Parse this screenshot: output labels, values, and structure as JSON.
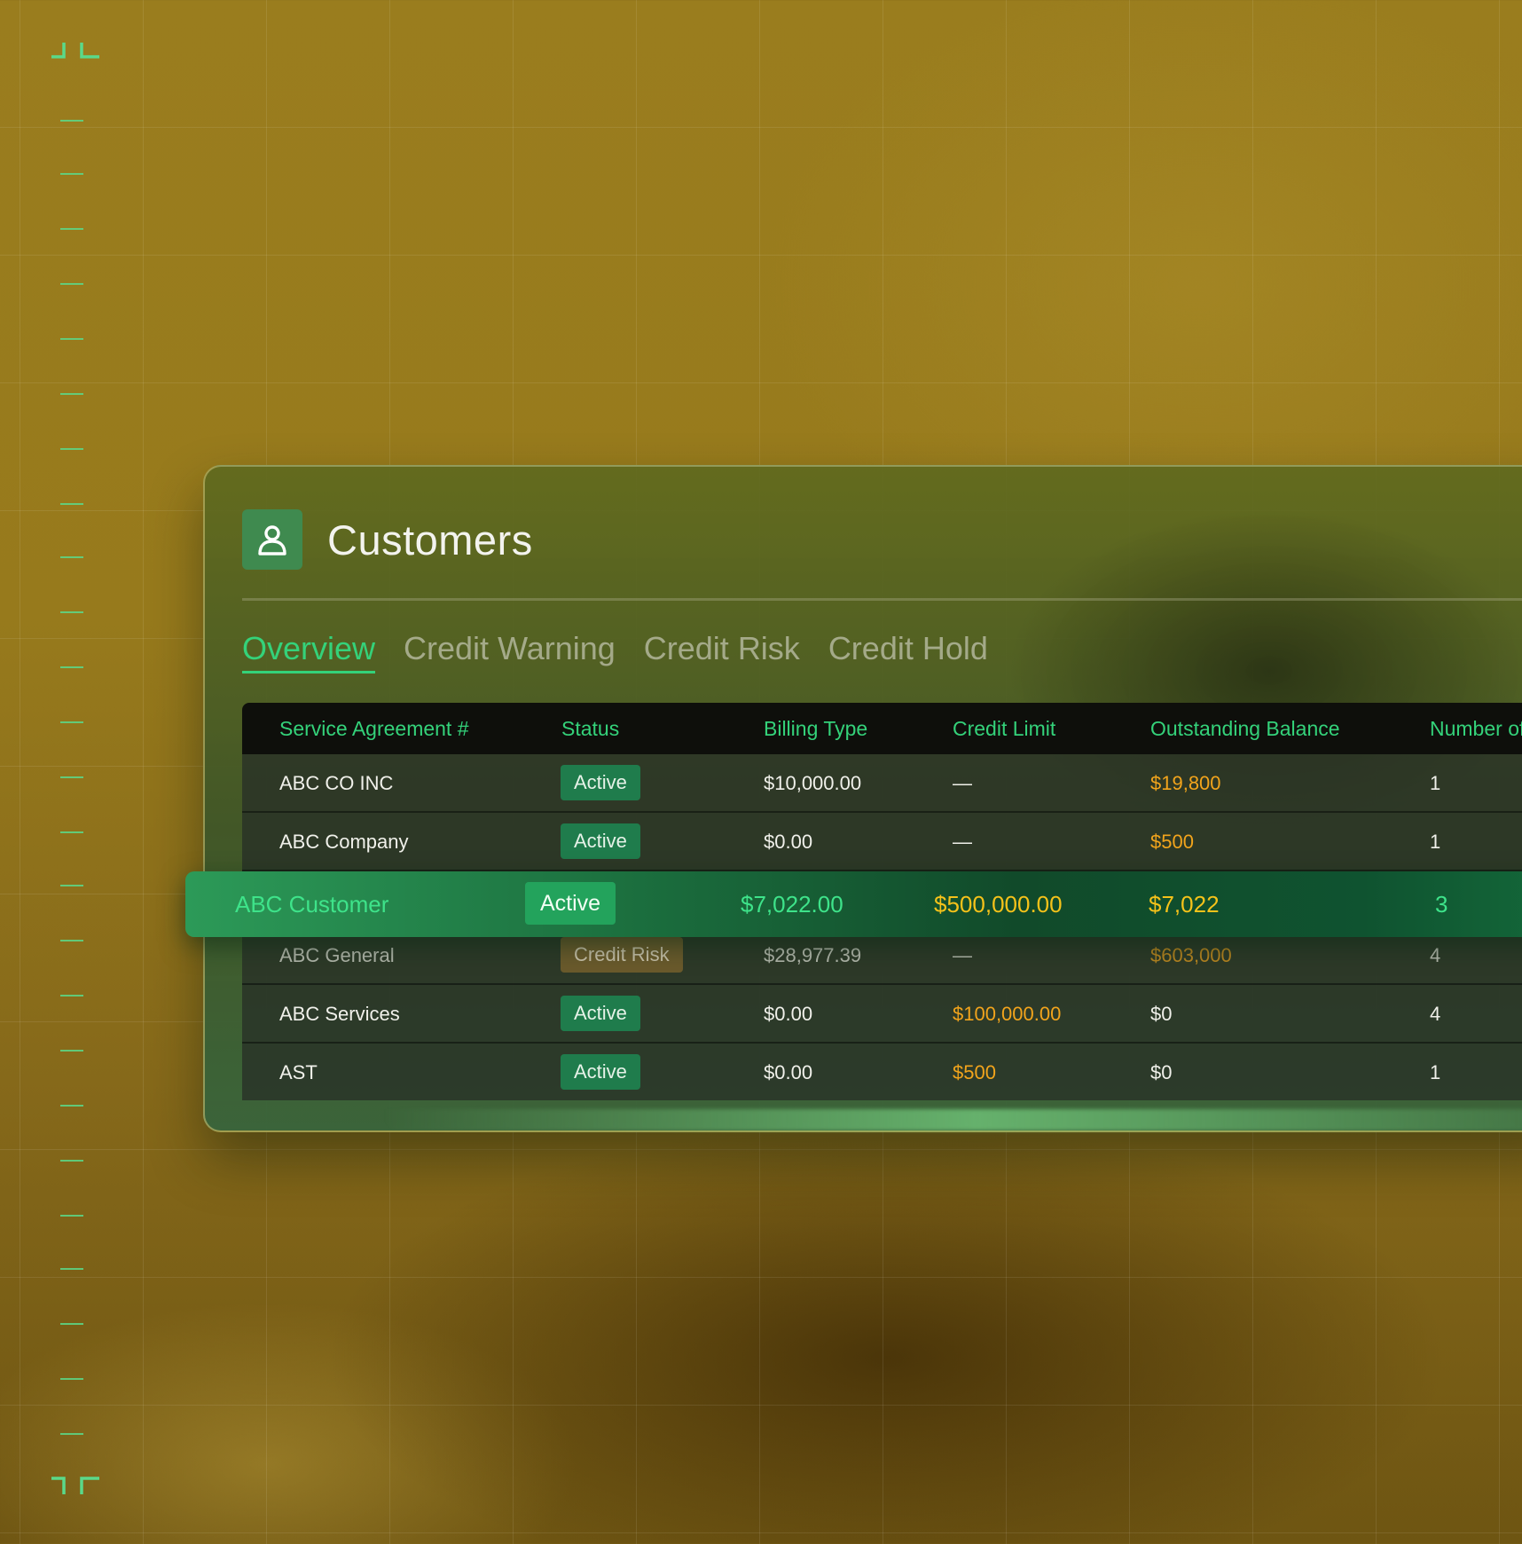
{
  "page": {
    "title": "Customers",
    "header_icon": "user-icon"
  },
  "tabs": [
    {
      "label": "Overview",
      "active": true
    },
    {
      "label": "Credit Warning",
      "active": false
    },
    {
      "label": "Credit Risk",
      "active": false
    },
    {
      "label": "Credit Hold",
      "active": false
    }
  ],
  "table": {
    "columns": [
      "Service Agreement #",
      "Status",
      "Billing Type",
      "Credit Limit",
      "Outstanding Balance",
      "Number of"
    ],
    "rows": [
      {
        "name": "ABC CO INC",
        "status": "Active",
        "billing": "$10,000.00",
        "limit": "—",
        "balance": "$19,800",
        "number": "1"
      },
      {
        "name": "ABC Company",
        "status": "Active",
        "billing": "$0.00",
        "limit": "—",
        "balance": "$500",
        "number": "1"
      },
      {
        "name": "ABC Customer",
        "status": "Active",
        "billing": "$7,022.00",
        "limit": "$500,000.00",
        "balance": "$7,022",
        "number": "3",
        "highlighted": true
      },
      {
        "name": "ABC General",
        "status": "Credit Risk",
        "billing": "$28,977.39",
        "limit": "—",
        "balance": "$603,000",
        "number": "4"
      },
      {
        "name": "ABC Services",
        "status": "Active",
        "billing": "$0.00",
        "limit": "$100,000.00",
        "balance": "$0",
        "number": "4"
      },
      {
        "name": "AST",
        "status": "Active",
        "billing": "$0.00",
        "limit": "$500",
        "balance": "$0",
        "number": "1"
      }
    ]
  },
  "colors": {
    "accent_green": "#34d27a",
    "active_badge": "#1f7c4c",
    "risk_badge": "#6a5a2c",
    "amount_amber": "#f2a41c",
    "highlight_row": "#1a6b3c",
    "background_gold": "#9a7d1e"
  }
}
